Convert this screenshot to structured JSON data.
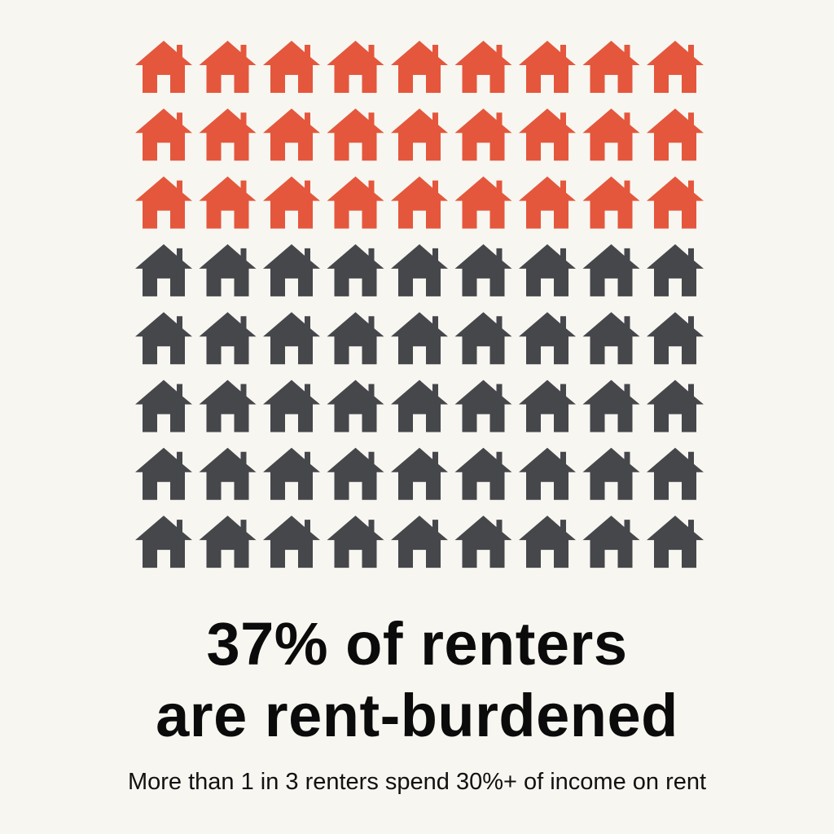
{
  "headline": {
    "line1": "37% of renters",
    "line2": "are rent-burdened"
  },
  "subtitle": "More than 1 in 3 renters spend 30%+ of income on rent",
  "colors": {
    "background": "#f8f6f1",
    "highlight": "#e4573c",
    "base": "#45474b",
    "text": "#0b0b0b"
  },
  "chart_data": {
    "type": "pictograph",
    "icon": "house-icon",
    "rows": 8,
    "columns": 9,
    "total_icons": 72,
    "highlighted_icons": 27,
    "highlight_value_percent": 37
  }
}
